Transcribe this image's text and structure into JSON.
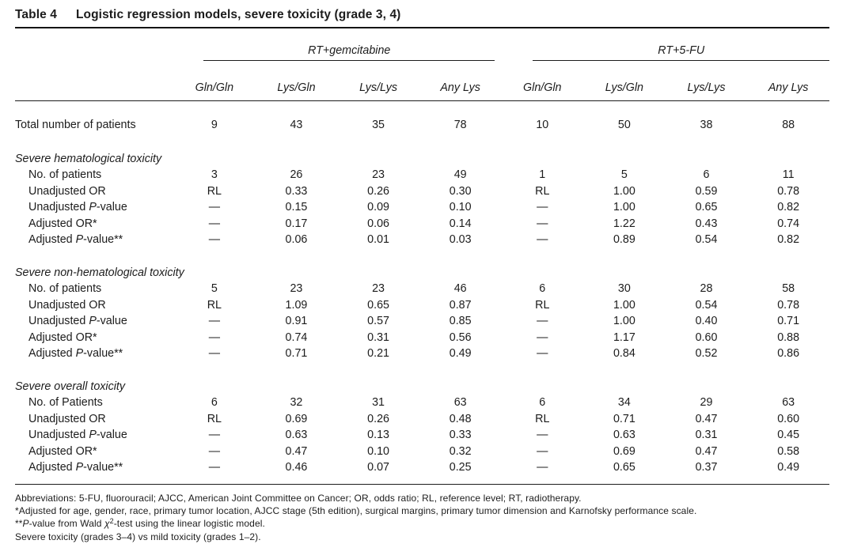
{
  "page": {
    "title_prefix": "Table 4",
    "title": "Logistic regression models, severe toxicity (grade 3, 4)"
  },
  "table": {
    "group_headers": [
      "RT+gemcitabine",
      "RT+5-FU"
    ],
    "genotype_columns": [
      "Gln/Gln",
      "Lys/Gln",
      "Lys/Lys",
      "Any Lys",
      "Gln/Gln",
      "Lys/Gln",
      "Lys/Lys",
      "Any Lys"
    ],
    "total_row": {
      "label": [
        {
          "text": "Total number of patients"
        }
      ],
      "values": [
        "9",
        "43",
        "35",
        "78",
        "10",
        "50",
        "38",
        "88"
      ]
    },
    "sections": [
      {
        "header": "Severe hematological toxicity",
        "rows": [
          {
            "label": [
              {
                "text": "No. of patients"
              }
            ],
            "values": [
              "3",
              "26",
              "23",
              "49",
              "1",
              "5",
              "6",
              "11"
            ]
          },
          {
            "label": [
              {
                "text": "Unadjusted OR"
              }
            ],
            "values": [
              "RL",
              "0.33",
              "0.26",
              "0.30",
              "RL",
              "1.00",
              "0.59",
              "0.78"
            ]
          },
          {
            "label": [
              {
                "text": "Unadjusted "
              },
              {
                "text": "P",
                "italic": true
              },
              {
                "text": "-value"
              }
            ],
            "values": [
              "—",
              "0.15",
              "0.09",
              "0.10",
              "—",
              "1.00",
              "0.65",
              "0.82"
            ]
          },
          {
            "label": [
              {
                "text": "Adjusted OR*"
              }
            ],
            "values": [
              "—",
              "0.17",
              "0.06",
              "0.14",
              "—",
              "1.22",
              "0.43",
              "0.74"
            ]
          },
          {
            "label": [
              {
                "text": "Adjusted "
              },
              {
                "text": "P",
                "italic": true
              },
              {
                "text": "-value**"
              }
            ],
            "values": [
              "—",
              "0.06",
              "0.01",
              "0.03",
              "—",
              "0.89",
              "0.54",
              "0.82"
            ]
          }
        ]
      },
      {
        "header": "Severe non-hematological toxicity",
        "rows": [
          {
            "label": [
              {
                "text": "No. of patients"
              }
            ],
            "values": [
              "5",
              "23",
              "23",
              "46",
              "6",
              "30",
              "28",
              "58"
            ]
          },
          {
            "label": [
              {
                "text": "Unadjusted OR"
              }
            ],
            "values": [
              "RL",
              "1.09",
              "0.65",
              "0.87",
              "RL",
              "1.00",
              "0.54",
              "0.78"
            ]
          },
          {
            "label": [
              {
                "text": "Unadjusted "
              },
              {
                "text": "P",
                "italic": true
              },
              {
                "text": "-value"
              }
            ],
            "values": [
              "—",
              "0.91",
              "0.57",
              "0.85",
              "—",
              "1.00",
              "0.40",
              "0.71"
            ]
          },
          {
            "label": [
              {
                "text": "Adjusted OR*"
              }
            ],
            "values": [
              "—",
              "0.74",
              "0.31",
              "0.56",
              "—",
              "1.17",
              "0.60",
              "0.88"
            ]
          },
          {
            "label": [
              {
                "text": "Adjusted "
              },
              {
                "text": "P",
                "italic": true
              },
              {
                "text": "-value**"
              }
            ],
            "values": [
              "—",
              "0.71",
              "0.21",
              "0.49",
              "—",
              "0.84",
              "0.52",
              "0.86"
            ]
          }
        ]
      },
      {
        "header": "Severe overall toxicity",
        "rows": [
          {
            "label": [
              {
                "text": "No. of Patients"
              }
            ],
            "values": [
              "6",
              "32",
              "31",
              "63",
              "6",
              "34",
              "29",
              "63"
            ]
          },
          {
            "label": [
              {
                "text": "Unadjusted OR"
              }
            ],
            "values": [
              "RL",
              "0.69",
              "0.26",
              "0.48",
              "RL",
              "0.71",
              "0.47",
              "0.60"
            ]
          },
          {
            "label": [
              {
                "text": "Unadjusted "
              },
              {
                "text": "P",
                "italic": true
              },
              {
                "text": "-value"
              }
            ],
            "values": [
              "—",
              "0.63",
              "0.13",
              "0.33",
              "—",
              "0.63",
              "0.31",
              "0.45"
            ]
          },
          {
            "label": [
              {
                "text": "Adjusted OR*"
              }
            ],
            "values": [
              "—",
              "0.47",
              "0.10",
              "0.32",
              "—",
              "0.69",
              "0.47",
              "0.58"
            ]
          },
          {
            "label": [
              {
                "text": "Adjusted "
              },
              {
                "text": "P",
                "italic": true
              },
              {
                "text": "-value**"
              }
            ],
            "values": [
              "—",
              "0.46",
              "0.07",
              "0.25",
              "—",
              "0.65",
              "0.37",
              "0.49"
            ]
          }
        ]
      }
    ]
  },
  "footnotes": [
    [
      {
        "text": "Abbreviations: 5-FU, fluorouracil; AJCC, American Joint Committee on Cancer; OR, odds ratio; RL, reference level; RT, radiotherapy."
      }
    ],
    [
      {
        "text": "*Adjusted for age, gender, race, primary tumor location, AJCC stage (5th edition), surgical margins, primary tumor dimension and Karnofsky performance scale."
      }
    ],
    [
      {
        "text": "**"
      },
      {
        "text": "P",
        "italic": true
      },
      {
        "text": "-value from Wald "
      },
      {
        "text": "χ",
        "italic": true
      },
      {
        "text": "2",
        "sup": true
      },
      {
        "text": "-test using the linear logistic model."
      }
    ],
    [
      {
        "text": "Severe toxicity (grades 3–4) vs mild toxicity (grades 1–2)."
      }
    ]
  ]
}
